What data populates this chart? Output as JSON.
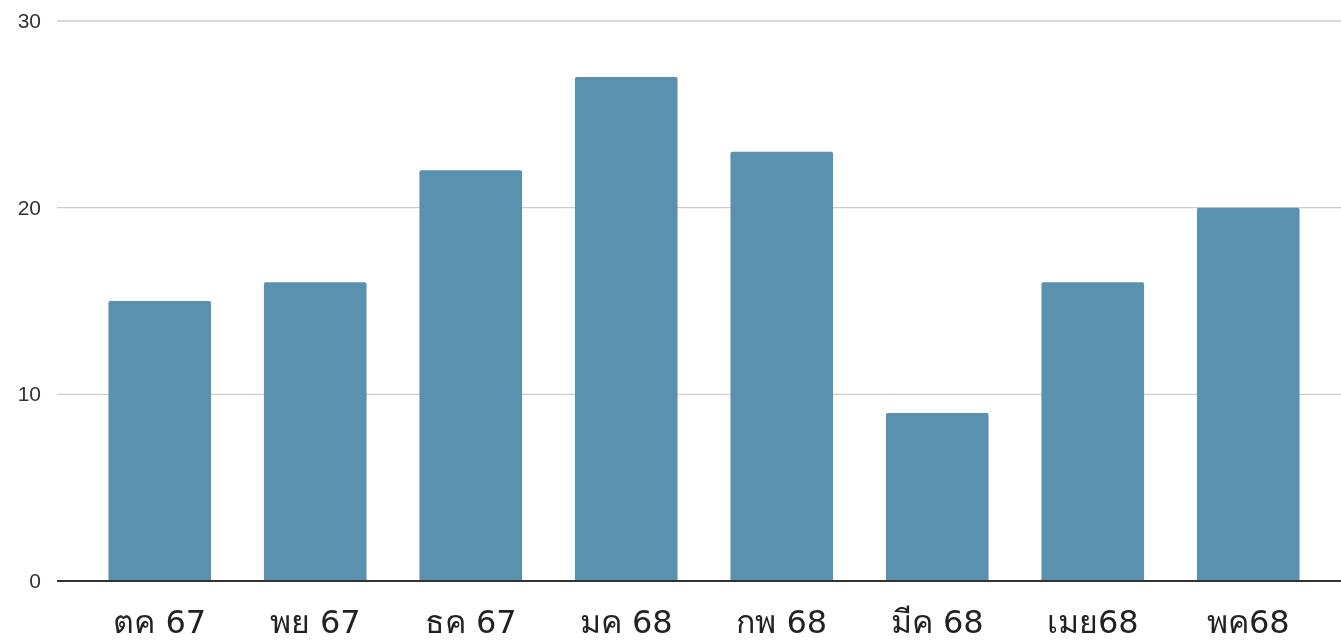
{
  "chart_data": {
    "type": "bar",
    "categories": [
      "ตค 67",
      "พย 67",
      "ธค 67",
      "มค 68",
      "กพ 68",
      "มีค 68",
      "เมย68",
      "พค68"
    ],
    "values": [
      15,
      16,
      22,
      27,
      23,
      9,
      16,
      20
    ],
    "color": "#5a91ae",
    "ylim": [
      0,
      30
    ],
    "yticks": [
      0,
      10,
      20,
      30
    ],
    "grid": "y"
  }
}
